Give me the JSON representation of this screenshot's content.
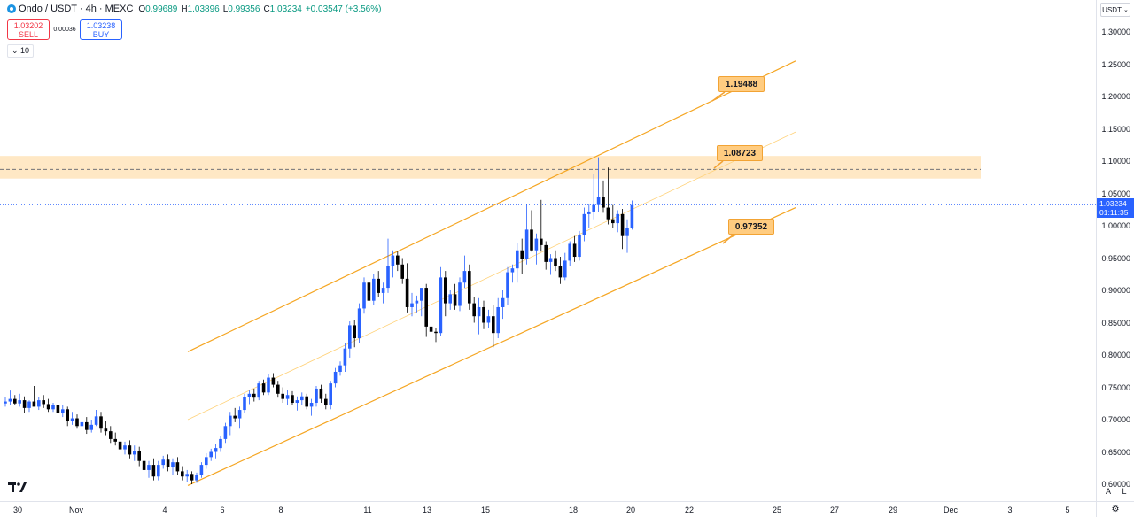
{
  "header": {
    "symbol_title": "Ondo / USDT · 4h · MEXC",
    "open_label": "O",
    "open_value": "0.99689",
    "high_label": "H",
    "high_value": "1.03896",
    "low_label": "L",
    "low_value": "0.99356",
    "close_label": "C",
    "close_value": "1.03234",
    "change_value": "+0.03547 (+3.56%)"
  },
  "trade": {
    "sell_price": "1.03202",
    "sell_label": "SELL",
    "spread": "0.00036",
    "buy_price": "1.03238",
    "buy_label": "BUY"
  },
  "interval_toggle": "⌄ 10",
  "price_axis": {
    "currency": "USDT",
    "ticks": [
      "1.30000",
      "1.25000",
      "1.20000",
      "1.15000",
      "1.10000",
      "1.05000",
      "1.00000",
      "0.95000",
      "0.90000",
      "0.85000",
      "0.80000",
      "0.75000",
      "0.70000",
      "0.65000",
      "0.60000"
    ],
    "current_price": "1.03234",
    "countdown": "01:11:35"
  },
  "time_axis": {
    "ticks": [
      "30",
      "Nov",
      "4",
      "6",
      "8",
      "11",
      "13",
      "15",
      "18",
      "20",
      "22",
      "25",
      "27",
      "29",
      "Dec",
      "3",
      "5"
    ]
  },
  "annotations": {
    "upper_label": "1.19488",
    "middle_label": "1.08723",
    "lower_label": "0.97352"
  },
  "scale_buttons": {
    "auto": "A",
    "log": "L"
  },
  "colors": {
    "up": "#2962ff",
    "down": "#000000",
    "channel": "#f5a623",
    "zone_fill": "#ffe0b2",
    "label_fill": "#ffcc80",
    "accent": "#2962ff"
  },
  "icons": {
    "settings": "gear-icon",
    "logo": "tradingview-logo-icon",
    "symbol": "ondo-logo-icon"
  },
  "chart_data": {
    "type": "candlestick",
    "ylim": [
      0.59,
      1.32
    ],
    "resistance_zone": [
      1.073,
      1.108
    ],
    "resistance_level": 1.08723,
    "current_price": 1.03234,
    "candles": [
      [
        0.725,
        0.735,
        0.72,
        0.728
      ],
      [
        0.728,
        0.745,
        0.722,
        0.732
      ],
      [
        0.732,
        0.738,
        0.722,
        0.725
      ],
      [
        0.725,
        0.74,
        0.72,
        0.73
      ],
      [
        0.73,
        0.736,
        0.71,
        0.718
      ],
      [
        0.718,
        0.73,
        0.712,
        0.728
      ],
      [
        0.728,
        0.752,
        0.722,
        0.72
      ],
      [
        0.72,
        0.735,
        0.715,
        0.73
      ],
      [
        0.73,
        0.738,
        0.718,
        0.724
      ],
      [
        0.724,
        0.732,
        0.712,
        0.716
      ],
      [
        0.716,
        0.726,
        0.712,
        0.722
      ],
      [
        0.722,
        0.728,
        0.705,
        0.71
      ],
      [
        0.71,
        0.722,
        0.704,
        0.716
      ],
      [
        0.716,
        0.72,
        0.69,
        0.698
      ],
      [
        0.698,
        0.712,
        0.692,
        0.702
      ],
      [
        0.702,
        0.708,
        0.686,
        0.69
      ],
      [
        0.69,
        0.702,
        0.684,
        0.696
      ],
      [
        0.696,
        0.704,
        0.678,
        0.684
      ],
      [
        0.684,
        0.7,
        0.68,
        0.692
      ],
      [
        0.692,
        0.715,
        0.69,
        0.705
      ],
      [
        0.705,
        0.712,
        0.68,
        0.686
      ],
      [
        0.686,
        0.698,
        0.676,
        0.682
      ],
      [
        0.682,
        0.69,
        0.664,
        0.67
      ],
      [
        0.67,
        0.68,
        0.66,
        0.666
      ],
      [
        0.666,
        0.676,
        0.648,
        0.654
      ],
      [
        0.654,
        0.666,
        0.646,
        0.66
      ],
      [
        0.66,
        0.668,
        0.64,
        0.646
      ],
      [
        0.646,
        0.66,
        0.636,
        0.652
      ],
      [
        0.652,
        0.658,
        0.628,
        0.636
      ],
      [
        0.636,
        0.648,
        0.616,
        0.622
      ],
      [
        0.622,
        0.636,
        0.61,
        0.63
      ],
      [
        0.63,
        0.64,
        0.606,
        0.612
      ],
      [
        0.612,
        0.636,
        0.606,
        0.63
      ],
      [
        0.63,
        0.644,
        0.624,
        0.638
      ],
      [
        0.638,
        0.646,
        0.62,
        0.626
      ],
      [
        0.626,
        0.64,
        0.614,
        0.634
      ],
      [
        0.634,
        0.642,
        0.614,
        0.62
      ],
      [
        0.62,
        0.628,
        0.606,
        0.612
      ],
      [
        0.612,
        0.622,
        0.604,
        0.616
      ],
      [
        0.616,
        0.62,
        0.6,
        0.606
      ],
      [
        0.606,
        0.618,
        0.602,
        0.614
      ],
      [
        0.614,
        0.634,
        0.61,
        0.63
      ],
      [
        0.63,
        0.648,
        0.624,
        0.642
      ],
      [
        0.642,
        0.655,
        0.636,
        0.65
      ],
      [
        0.65,
        0.662,
        0.64,
        0.656
      ],
      [
        0.656,
        0.675,
        0.65,
        0.67
      ],
      [
        0.67,
        0.695,
        0.664,
        0.69
      ],
      [
        0.69,
        0.712,
        0.676,
        0.706
      ],
      [
        0.706,
        0.718,
        0.696,
        0.702
      ],
      [
        0.702,
        0.72,
        0.686,
        0.715
      ],
      [
        0.715,
        0.74,
        0.71,
        0.735
      ],
      [
        0.735,
        0.745,
        0.724,
        0.74
      ],
      [
        0.74,
        0.748,
        0.728,
        0.734
      ],
      [
        0.734,
        0.76,
        0.73,
        0.756
      ],
      [
        0.756,
        0.762,
        0.738,
        0.742
      ],
      [
        0.742,
        0.77,
        0.738,
        0.765
      ],
      [
        0.765,
        0.772,
        0.75,
        0.754
      ],
      [
        0.754,
        0.76,
        0.734,
        0.74
      ],
      [
        0.74,
        0.75,
        0.726,
        0.732
      ],
      [
        0.732,
        0.746,
        0.722,
        0.738
      ],
      [
        0.738,
        0.744,
        0.722,
        0.726
      ],
      [
        0.726,
        0.736,
        0.714,
        0.73
      ],
      [
        0.73,
        0.742,
        0.722,
        0.736
      ],
      [
        0.736,
        0.74,
        0.716,
        0.72
      ],
      [
        0.72,
        0.732,
        0.706,
        0.726
      ],
      [
        0.726,
        0.752,
        0.72,
        0.748
      ],
      [
        0.748,
        0.754,
        0.726,
        0.732
      ],
      [
        0.732,
        0.74,
        0.716,
        0.722
      ],
      [
        0.722,
        0.76,
        0.716,
        0.756
      ],
      [
        0.756,
        0.78,
        0.75,
        0.774
      ],
      [
        0.774,
        0.79,
        0.768,
        0.784
      ],
      [
        0.784,
        0.818,
        0.774,
        0.81
      ],
      [
        0.81,
        0.852,
        0.796,
        0.846
      ],
      [
        0.846,
        0.854,
        0.812,
        0.826
      ],
      [
        0.826,
        0.88,
        0.818,
        0.872
      ],
      [
        0.872,
        0.92,
        0.864,
        0.912
      ],
      [
        0.912,
        0.918,
        0.876,
        0.884
      ],
      [
        0.884,
        0.926,
        0.878,
        0.918
      ],
      [
        0.918,
        0.93,
        0.89,
        0.896
      ],
      [
        0.896,
        0.912,
        0.88,
        0.904
      ],
      [
        0.904,
        0.98,
        0.896,
        0.938
      ],
      [
        0.938,
        0.962,
        0.92,
        0.954
      ],
      [
        0.954,
        0.96,
        0.93,
        0.94
      ],
      [
        0.94,
        0.95,
        0.91,
        0.918
      ],
      [
        0.918,
        0.942,
        0.866,
        0.874
      ],
      [
        0.874,
        0.896,
        0.86,
        0.88
      ],
      [
        0.88,
        0.892,
        0.866,
        0.884
      ],
      [
        0.884,
        0.9,
        0.86,
        0.904
      ],
      [
        0.904,
        0.91,
        0.828,
        0.844
      ],
      [
        0.844,
        0.856,
        0.792,
        0.836
      ],
      [
        0.836,
        0.842,
        0.82,
        0.834
      ],
      [
        0.834,
        0.936,
        0.83,
        0.92
      ],
      [
        0.92,
        0.93,
        0.86,
        0.88
      ],
      [
        0.88,
        0.9,
        0.87,
        0.894
      ],
      [
        0.894,
        0.91,
        0.87,
        0.876
      ],
      [
        0.876,
        0.92,
        0.868,
        0.912
      ],
      [
        0.912,
        0.954,
        0.904,
        0.93
      ],
      [
        0.93,
        0.94,
        0.87,
        0.88
      ],
      [
        0.88,
        0.89,
        0.85,
        0.86
      ],
      [
        0.86,
        0.888,
        0.832,
        0.874
      ],
      [
        0.874,
        0.884,
        0.84,
        0.85
      ],
      [
        0.85,
        0.87,
        0.842,
        0.86
      ],
      [
        0.86,
        0.878,
        0.812,
        0.834
      ],
      [
        0.834,
        0.888,
        0.826,
        0.874
      ],
      [
        0.874,
        0.9,
        0.856,
        0.888
      ],
      [
        0.888,
        0.936,
        0.878,
        0.928
      ],
      [
        0.928,
        0.94,
        0.912,
        0.934
      ],
      [
        0.934,
        0.974,
        0.912,
        0.962
      ],
      [
        0.962,
        0.98,
        0.926,
        0.948
      ],
      [
        0.948,
        1.034,
        0.94,
        0.994
      ],
      [
        0.994,
        1.024,
        0.96,
        0.962
      ],
      [
        0.962,
        0.988,
        0.94,
        0.98
      ],
      [
        0.98,
        1.04,
        0.96,
        0.97
      ],
      [
        0.97,
        0.976,
        0.932,
        0.944
      ],
      [
        0.944,
        0.956,
        0.924,
        0.95
      ],
      [
        0.95,
        0.962,
        0.93,
        0.938
      ],
      [
        0.938,
        0.952,
        0.91,
        0.92
      ],
      [
        0.92,
        0.958,
        0.916,
        0.946
      ],
      [
        0.946,
        0.976,
        0.938,
        0.972
      ],
      [
        0.972,
        0.984,
        0.944,
        0.952
      ],
      [
        0.952,
        0.992,
        0.946,
        0.986
      ],
      [
        0.986,
        1.028,
        0.976,
        1.018
      ],
      [
        1.018,
        1.034,
        0.996,
        1.022
      ],
      [
        1.022,
        1.08,
        1.01,
        1.032
      ],
      [
        1.032,
        1.106,
        1.022,
        1.044
      ],
      [
        1.044,
        1.07,
        1.02,
        1.028
      ],
      [
        1.028,
        1.09,
        1.002,
        1.01
      ],
      [
        1.01,
        1.032,
        0.996,
        1.004
      ],
      [
        1.004,
        1.024,
        0.99,
        1.018
      ],
      [
        1.018,
        1.026,
        0.964,
        0.984
      ],
      [
        0.984,
        1.01,
        0.958,
        0.996
      ],
      [
        0.997,
        1.039,
        0.994,
        1.032
      ]
    ],
    "channel": {
      "upper": {
        "from_price": 0.805,
        "to_price": 1.255,
        "label": "1.19488"
      },
      "middle": {
        "from_price": 0.7,
        "to_price": 1.145,
        "label": "1.08723"
      },
      "lower": {
        "from_price": 0.598,
        "to_price": 1.028,
        "label": "0.97352"
      }
    }
  }
}
